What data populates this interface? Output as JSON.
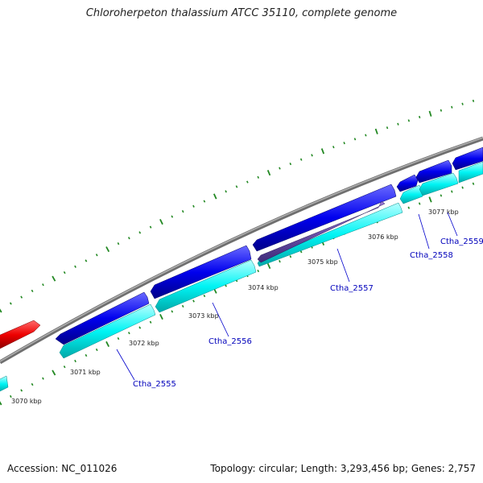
{
  "title": "Chloroherpeton thalassium ATCC 35110, complete genome",
  "footer": {
    "accession": "Accession: NC_011026",
    "summary": "Topology: circular; Length: 3,293,456 bp; Genes: 2,757"
  },
  "colors": {
    "backbone": "#808080",
    "forward_cds": "#0000ee",
    "reverse_cds": "#800080",
    "gene_light": "#00ffff",
    "rna_red": "#ee0000",
    "tick": "#228822",
    "label": "#0000bb"
  },
  "scale": {
    "unit": "kbp",
    "labels": [
      "3070 kbp",
      "3071 kbp",
      "3072 kbp",
      "3073 kbp",
      "3074 kbp",
      "3075 kbp",
      "3076 kbp",
      "3077 kbp"
    ]
  },
  "genes": [
    "Ctha_2555",
    "Ctha_2556",
    "Ctha_2557",
    "Ctha_2558",
    "Ctha_2559"
  ]
}
